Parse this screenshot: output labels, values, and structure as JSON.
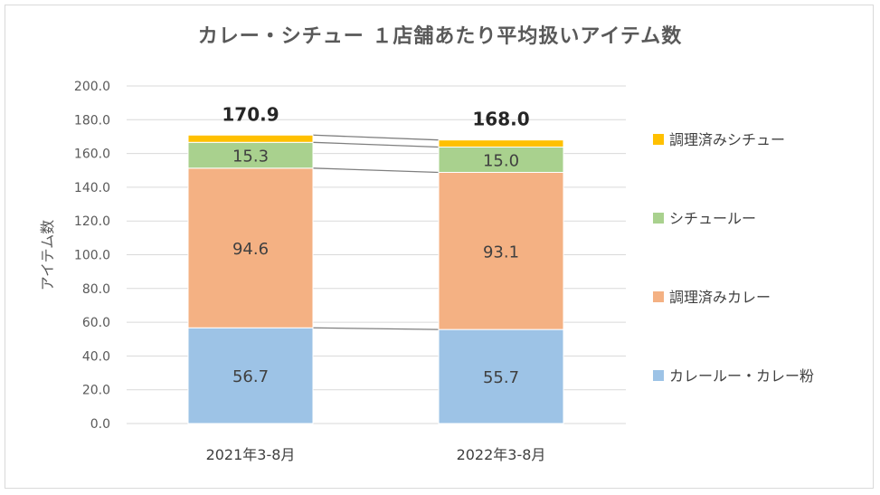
{
  "chart_data": {
    "type": "bar",
    "stacked": true,
    "title": "カレー・シチュー １店舗あたり平均扱いアイテム数",
    "ylabel": "アイテム数",
    "xlabel": "",
    "ylim": [
      0,
      200
    ],
    "yticks": [
      "0.0",
      "20.0",
      "40.0",
      "60.0",
      "80.0",
      "100.0",
      "120.0",
      "140.0",
      "160.0",
      "180.0",
      "200.0"
    ],
    "categories": [
      "2021年3-8月",
      "2022年3-8月"
    ],
    "series": [
      {
        "name": "カレールー・カレー粉",
        "values": [
          56.7,
          55.7
        ],
        "labels": [
          "56.7",
          "55.7"
        ],
        "color": "#9dc3e6"
      },
      {
        "name": "調理済みカレー",
        "values": [
          94.6,
          93.1
        ],
        "labels": [
          "94.6",
          "93.1"
        ],
        "color": "#f4b183"
      },
      {
        "name": "シチュールー",
        "values": [
          15.3,
          15.0
        ],
        "labels": [
          "15.3",
          "15.0"
        ],
        "color": "#a9d18e"
      },
      {
        "name": "調理済みシチュー",
        "values": [
          4.3,
          4.2
        ],
        "labels": [],
        "color": "#ffc000"
      }
    ],
    "totals": [
      "170.9",
      "168.0"
    ],
    "legend_position": "right",
    "grid": true,
    "series_lines": true
  }
}
